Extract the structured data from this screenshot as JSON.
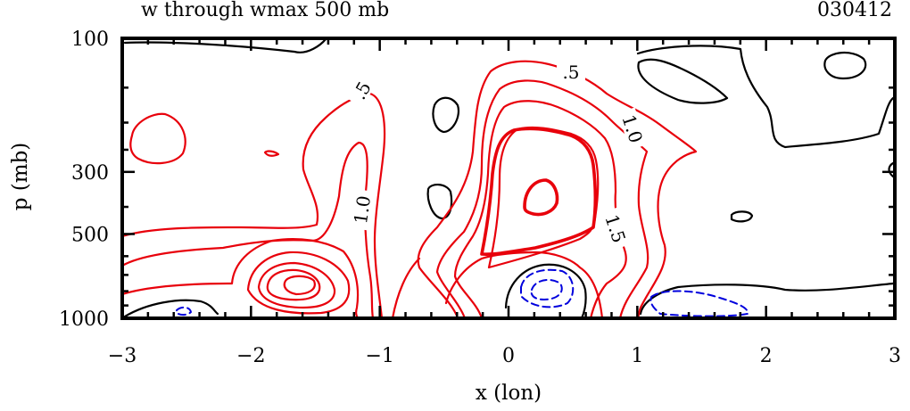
{
  "title": "w through wmax 500 mb",
  "date": "030412",
  "chart_data": {
    "type": "contour",
    "xlabel": "x (lon)",
    "ylabel": "p (mb)",
    "xlim": [
      -3,
      3
    ],
    "x_ticks": [
      -3,
      -2,
      -1,
      0,
      1,
      2,
      3
    ],
    "x_tick_labels": [
      "−3",
      "−2",
      "−1",
      "0",
      "1",
      "2",
      "3"
    ],
    "y_ticks": [
      100,
      300,
      500,
      1000
    ],
    "y_tick_labels": [
      "100",
      "300",
      "500",
      "1000"
    ],
    "contour_labels": [
      ".5",
      "1.0",
      ".5",
      "1.0",
      "1.5"
    ],
    "colors": {
      "positive": "#e8000b",
      "zero": "#000000",
      "negative": "#0000dd"
    },
    "grid": false
  }
}
